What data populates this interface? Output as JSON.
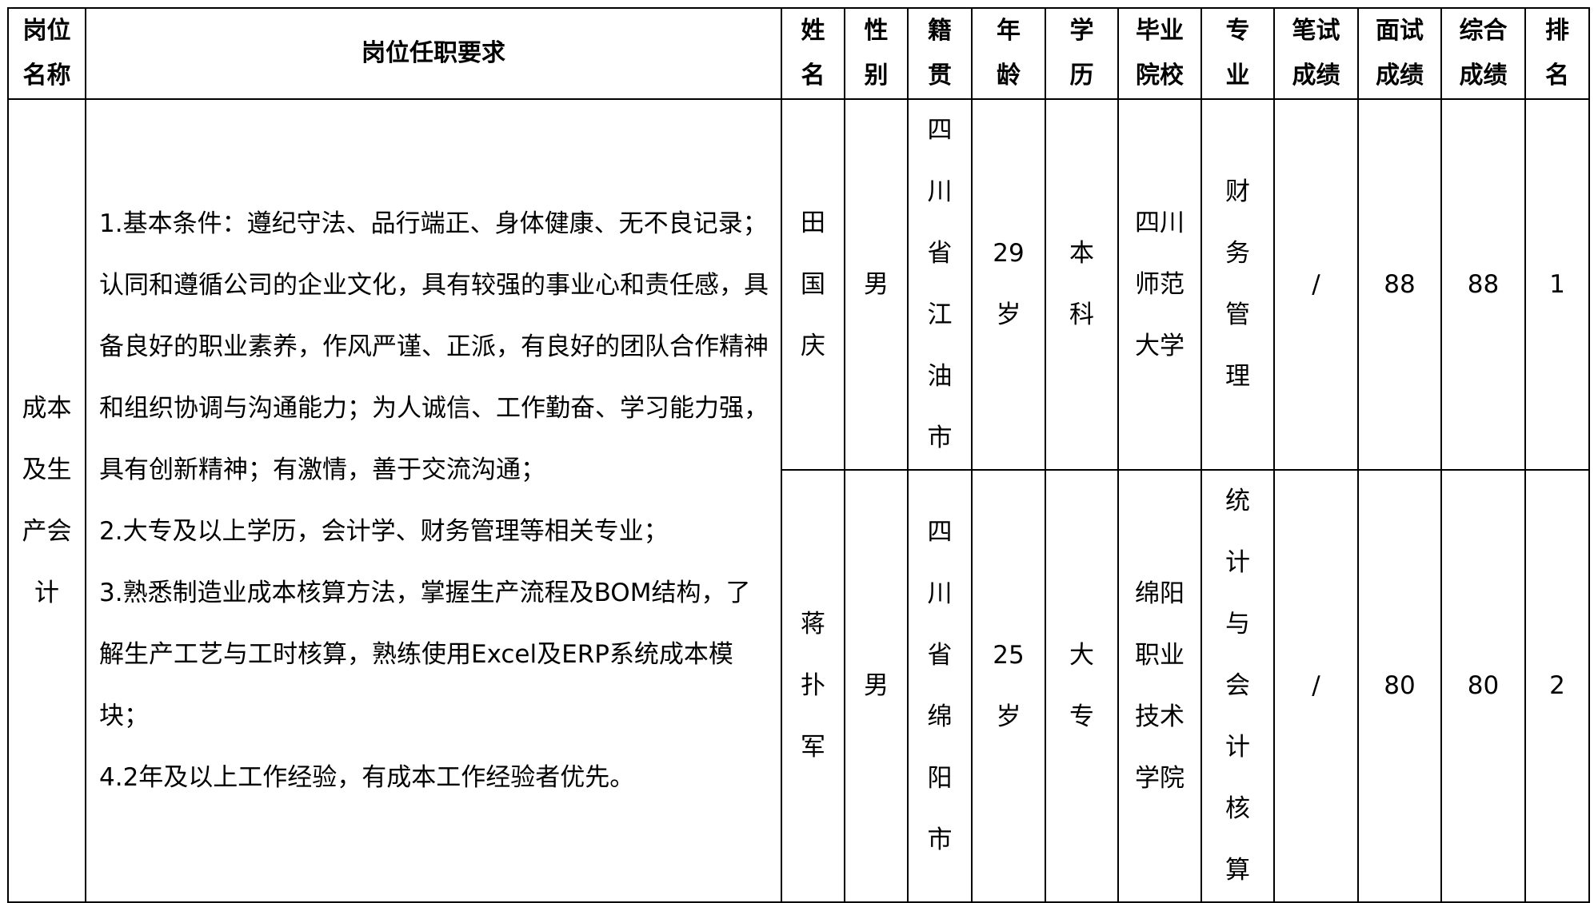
{
  "headers": [
    "岗位名称",
    "岗位任职要求",
    "姓名",
    "性别",
    "籍贯",
    "年龄",
    "学历",
    "毕业院校",
    "专业",
    "笔试成绩",
    "面试成绩",
    "综合成绩",
    "排名"
  ],
  "position": "成本及生产会计",
  "requirements": [
    "1.基本条件：遵纪守法、品行端正、身体健康、无不良记录；认同和遵循公司的企业文化，具有较强的事业心和责任感，具备良好的职业素养，作风严谨、正派，有良好的团队合作精神和组织协调与沟通能力；为人诚信、工作勤奋、学习能力强，具有创新精神；有激情，善于交流沟通；",
    "2.大专及以上学历，会计学、财务管理等相关专业；",
    "3.熟悉制造业成本核算方法，掌握生产流程及BOM结构，了解生产工艺与工时核算，熟练使用Excel及ERP系统成本模块；",
    "4.2年及以上工作经验，有成本工作经验者优先。"
  ],
  "rows": [
    {
      "name": "田国庆",
      "gender": "男",
      "origin": "四川省江油市",
      "age": "29岁",
      "education": "本科",
      "school": "四川师范大学",
      "major": "财务管理",
      "written": "/",
      "interview": "88",
      "total": "88",
      "rank": "1"
    },
    {
      "name": "蒋扑军",
      "gender": "男",
      "origin": "四川省绵阳市",
      "age": "25岁",
      "education": "大专",
      "school": "绵阳职业技术学院",
      "major": "统计与会计核算",
      "written": "/",
      "interview": "80",
      "total": "80",
      "rank": "2"
    }
  ]
}
